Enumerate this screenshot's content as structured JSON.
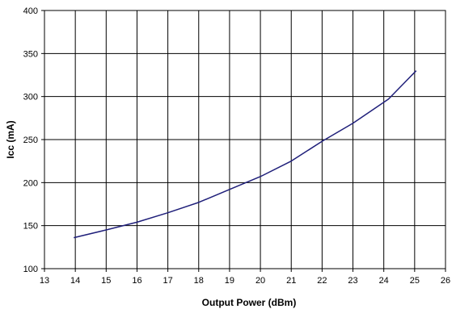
{
  "chart_data": {
    "type": "line",
    "title": "",
    "xlabel": "Output Power (dBm)",
    "ylabel": "Icc (mA)",
    "xlim": [
      13,
      26
    ],
    "ylim": [
      100,
      400
    ],
    "xticks": [
      13,
      14,
      15,
      16,
      17,
      18,
      19,
      20,
      21,
      22,
      23,
      24,
      25,
      26
    ],
    "yticks": [
      100,
      150,
      200,
      250,
      300,
      350,
      400
    ],
    "grid": true,
    "legend": "none",
    "series": [
      {
        "color": "#1f1f7a",
        "x": [
          13.95,
          15,
          16,
          17,
          18,
          19,
          20,
          21,
          22,
          23,
          24.15,
          25.05
        ],
        "y": [
          136,
          145,
          154,
          165,
          177,
          192,
          207,
          225,
          248,
          269,
          297,
          330
        ]
      }
    ]
  }
}
